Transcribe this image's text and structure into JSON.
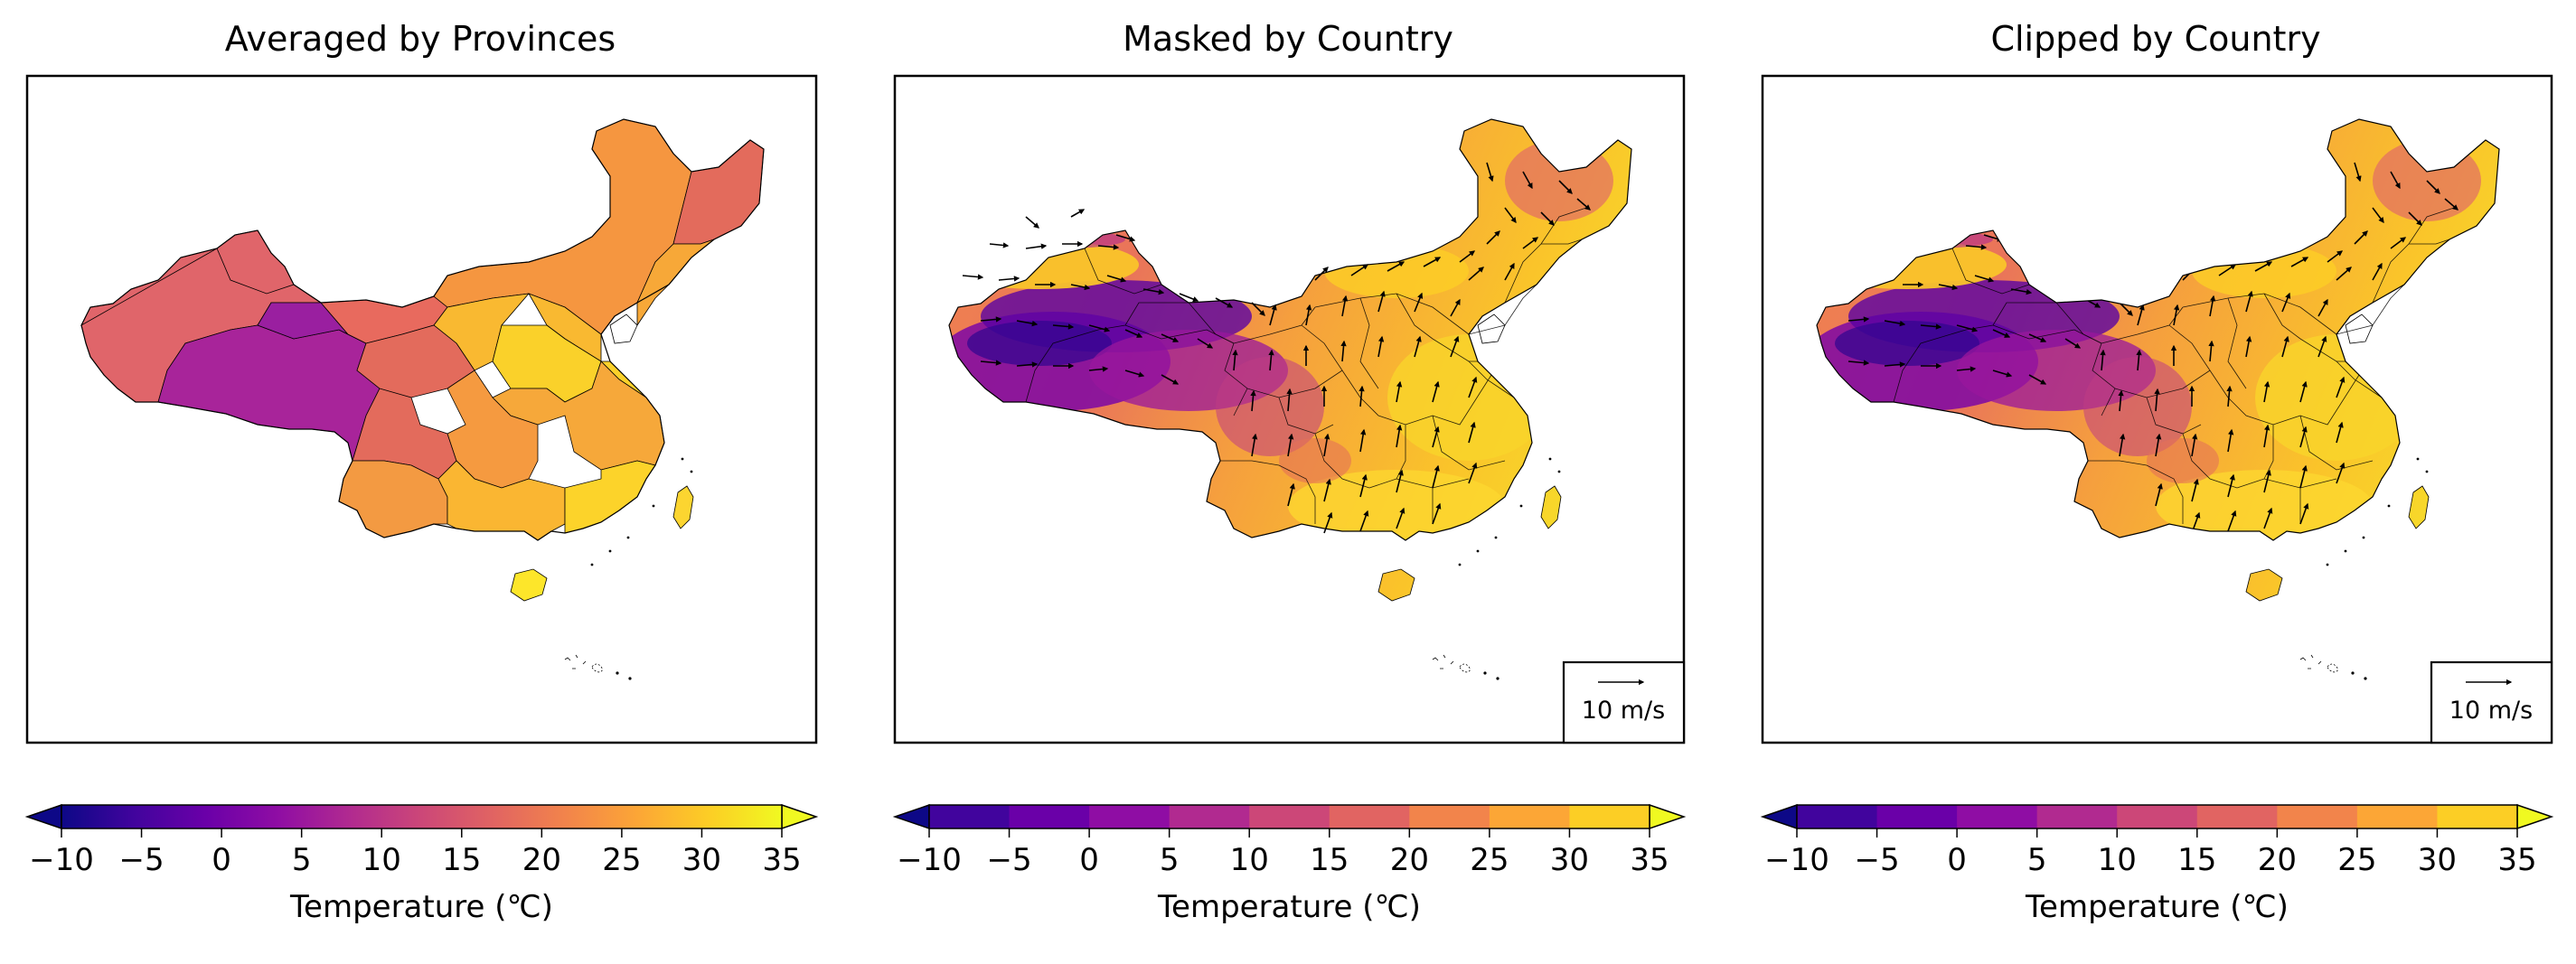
{
  "panels": [
    {
      "title": "Averaged by Provinces",
      "style": "province-average"
    },
    {
      "title": "Masked by Country",
      "style": "masked",
      "quiver_key": "10 m/s"
    },
    {
      "title": "Clipped by Country",
      "style": "clipped",
      "quiver_key": "10 m/s"
    }
  ],
  "colorbar": {
    "label": "Temperature (℃)",
    "ticks": [
      "−10",
      "−5",
      "0",
      "5",
      "10",
      "15",
      "20",
      "25",
      "30",
      "35"
    ],
    "tick_values": [
      -10,
      -5,
      0,
      5,
      10,
      15,
      20,
      25,
      30,
      35
    ],
    "range": [
      -10,
      35
    ],
    "extend": "both",
    "colormap": "plasma",
    "colors": [
      "#0d0887",
      "#41049d",
      "#6a00a8",
      "#8f0da4",
      "#b12a90",
      "#cc4778",
      "#e16462",
      "#f2844b",
      "#fca636",
      "#fcce25",
      "#f0f921"
    ]
  },
  "province_colors": {
    "xinjiang": "#e0656a",
    "tibet": "#a8249a",
    "qinghai": "#9a1fa0",
    "gansu": "#e86a5e",
    "sichuan": "#e36b5c",
    "inner_mongolia": "#f59640",
    "heilongjiang": "#e36b5c",
    "jilin": "#f59640",
    "liaoning": "#f8b132",
    "beijing_hebei": "#f9c12c",
    "shandong": "#fad12a",
    "central": "#f59a40",
    "yunnan": "#f39a42",
    "guangxi": "#fab632",
    "guangdong": "#fcd32a",
    "fujian": "#fbcb2c",
    "taiwan": "#fcd530",
    "hainan": "#fde62a",
    "east": "#f6a83a"
  }
}
